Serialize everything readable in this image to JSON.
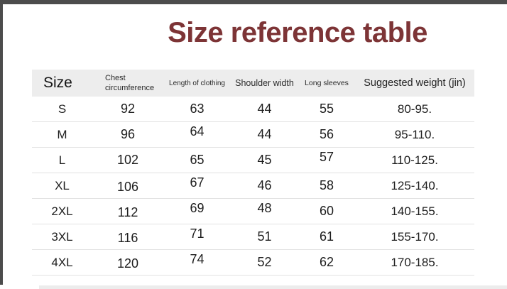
{
  "frame": {
    "border_color": "#4c4c4c"
  },
  "title": {
    "text": "Size reference table",
    "color": "#7d3436"
  },
  "table": {
    "header": {
      "size": "Size",
      "chest": "Chest circumference",
      "length": "Length of clothing",
      "shoulder": "Shoulder width",
      "sleeves": "Long sleeves",
      "weight": "Suggested weight (jin)"
    },
    "rows": [
      {
        "size": "S",
        "chest": "92",
        "length": "63",
        "shoulder": "44",
        "sleeves": "55",
        "weight": "80-95."
      },
      {
        "size": "M",
        "chest": "96",
        "length": "64",
        "shoulder": "44",
        "sleeves": "56",
        "weight": "95-110."
      },
      {
        "size": "L",
        "chest": "102",
        "length": "65",
        "shoulder": "45",
        "sleeves": "57",
        "weight": "110-125."
      },
      {
        "size": "XL",
        "chest": "106",
        "length": "67",
        "shoulder": "46",
        "sleeves": "58",
        "weight": "125-140."
      },
      {
        "size": "2XL",
        "chest": "112",
        "length": "69",
        "shoulder": "48",
        "sleeves": "60",
        "weight": "140-155."
      },
      {
        "size": "3XL",
        "chest": "116",
        "length": "71",
        "shoulder": "51",
        "sleeves": "61",
        "weight": "155-170."
      },
      {
        "size": "4XL",
        "chest": "120",
        "length": "74",
        "shoulder": "52",
        "sleeves": "62",
        "weight": "170-185."
      }
    ]
  }
}
